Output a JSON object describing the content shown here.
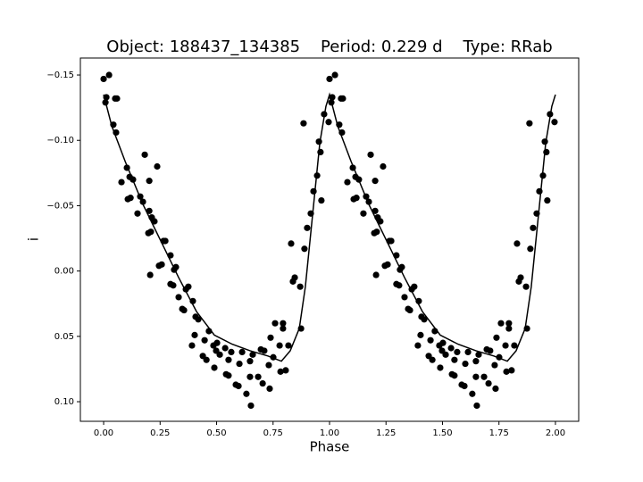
{
  "chart_data": {
    "type": "scatter",
    "title": "Object: 188437_134385    Period: 0.229 d    Type: RRab",
    "xlabel": "Phase",
    "ylabel": "i",
    "xlim": [
      -0.103,
      2.103
    ],
    "ylim": [
      0.115,
      -0.163
    ],
    "xticks": [
      {
        "value": 0,
        "label": "0.00"
      },
      0.25,
      {
        "value": 0.5,
        "label": "0.50"
      },
      0.75,
      {
        "value": 1,
        "label": "1.00"
      },
      1.25,
      {
        "value": 1.5,
        "label": "1.50"
      },
      1.75,
      {
        "value": 2,
        "label": "2.00"
      }
    ],
    "yticks": [
      {
        "value": -0.15,
        "label": "−0.15"
      },
      {
        "value": -0.1,
        "label": "−0.10"
      },
      {
        "value": -0.05,
        "label": "−0.05"
      },
      {
        "value": 0,
        "label": "0.00"
      },
      0.05,
      {
        "value": 0.1,
        "label": "0.10"
      }
    ],
    "grid": false,
    "series": [
      {
        "type": "scatter",
        "color": "#000000",
        "x": [
          0.0,
          0.008,
          0.012,
          0.024,
          0.043,
          0.051,
          0.059,
          0.055,
          0.079,
          0.103,
          0.107,
          0.115,
          0.119,
          0.13,
          0.15,
          0.162,
          0.174,
          0.182,
          0.198,
          0.202,
          0.202,
          0.209,
          0.213,
          0.225,
          0.237,
          0.245,
          0.257,
          0.265,
          0.273,
          0.206,
          0.296,
          0.296,
          0.308,
          0.312,
          0.32,
          0.332,
          0.348,
          0.356,
          0.364,
          0.375,
          0.395,
          0.407,
          0.419,
          0.391,
          0.403,
          0.439,
          0.447,
          0.455,
          0.466,
          0.486,
          0.49,
          0.498,
          0.502,
          0.514,
          0.538,
          0.542,
          0.553,
          0.553,
          0.565,
          0.585,
          0.597,
          0.601,
          0.613,
          0.632,
          0.648,
          0.652,
          0.648,
          0.66,
          0.684,
          0.696,
          0.704,
          0.711,
          0.731,
          0.735,
          0.739,
          0.751,
          0.759,
          0.779,
          0.783,
          0.794,
          0.794,
          0.806,
          0.818,
          0.83,
          0.838,
          0.846,
          0.87,
          0.874,
          0.889,
          0.885,
          0.901,
          0.917,
          0.929,
          0.945,
          0.953,
          0.96,
          0.964,
          0.976,
          0.996,
          1.0,
          1.008,
          1.012,
          1.024,
          1.043,
          1.051,
          1.059,
          1.055,
          1.079,
          1.103,
          1.107,
          1.115,
          1.119,
          1.13,
          1.15,
          1.162,
          1.174,
          1.182,
          1.198,
          1.202,
          1.202,
          1.209,
          1.213,
          1.225,
          1.237,
          1.245,
          1.257,
          1.265,
          1.273,
          1.206,
          1.296,
          1.296,
          1.308,
          1.312,
          1.32,
          1.332,
          1.348,
          1.356,
          1.364,
          1.375,
          1.395,
          1.407,
          1.419,
          1.391,
          1.403,
          1.439,
          1.447,
          1.455,
          1.466,
          1.486,
          1.49,
          1.498,
          1.502,
          1.514,
          1.538,
          1.542,
          1.553,
          1.553,
          1.565,
          1.585,
          1.597,
          1.601,
          1.613,
          1.632,
          1.648,
          1.652,
          1.648,
          1.66,
          1.684,
          1.696,
          1.704,
          1.711,
          1.731,
          1.735,
          1.739,
          1.751,
          1.759,
          1.779,
          1.783,
          1.794,
          1.794,
          1.806,
          1.818,
          1.83,
          1.838,
          1.846,
          1.87,
          1.874,
          1.889,
          1.885,
          1.901,
          1.917,
          1.929,
          1.945,
          1.953,
          1.96,
          1.964,
          1.976,
          1.996
        ],
        "values": [
          -0.147,
          -0.129,
          -0.133,
          -0.15,
          -0.112,
          -0.132,
          -0.132,
          -0.106,
          -0.068,
          -0.079,
          -0.055,
          -0.072,
          -0.056,
          -0.07,
          -0.044,
          -0.057,
          -0.053,
          -0.089,
          -0.029,
          -0.069,
          -0.046,
          -0.03,
          -0.041,
          -0.038,
          -0.08,
          -0.004,
          -0.005,
          -0.023,
          -0.023,
          0.003,
          -0.012,
          0.01,
          0.011,
          -0.001,
          -0.003,
          0.02,
          0.029,
          0.03,
          0.014,
          0.012,
          0.023,
          0.035,
          0.037,
          0.057,
          0.049,
          0.065,
          0.053,
          0.068,
          0.046,
          0.057,
          0.074,
          0.061,
          0.055,
          0.064,
          0.059,
          0.079,
          0.08,
          0.068,
          0.062,
          0.087,
          0.088,
          0.071,
          0.062,
          0.094,
          0.081,
          0.103,
          0.069,
          0.064,
          0.081,
          0.06,
          0.086,
          0.061,
          0.072,
          0.09,
          0.051,
          0.066,
          0.04,
          0.057,
          0.077,
          0.044,
          0.04,
          0.076,
          0.057,
          -0.021,
          0.008,
          0.005,
          0.012,
          0.044,
          -0.017,
          -0.113,
          -0.033,
          -0.044,
          -0.061,
          -0.073,
          -0.099,
          -0.091,
          -0.054,
          -0.12,
          -0.114,
          -0.147,
          -0.129,
          -0.133,
          -0.15,
          -0.112,
          -0.132,
          -0.132,
          -0.106,
          -0.068,
          -0.079,
          -0.055,
          -0.072,
          -0.056,
          -0.07,
          -0.044,
          -0.057,
          -0.053,
          -0.089,
          -0.029,
          -0.069,
          -0.046,
          -0.03,
          -0.041,
          -0.038,
          -0.08,
          -0.004,
          -0.005,
          -0.023,
          -0.023,
          0.003,
          -0.012,
          0.01,
          0.011,
          -0.001,
          -0.003,
          0.02,
          0.029,
          0.03,
          0.014,
          0.012,
          0.023,
          0.035,
          0.037,
          0.057,
          0.049,
          0.065,
          0.053,
          0.068,
          0.046,
          0.057,
          0.074,
          0.061,
          0.055,
          0.064,
          0.059,
          0.079,
          0.08,
          0.068,
          0.062,
          0.087,
          0.088,
          0.071,
          0.062,
          0.094,
          0.081,
          0.103,
          0.069,
          0.064,
          0.081,
          0.06,
          0.086,
          0.061,
          0.072,
          0.09,
          0.051,
          0.066,
          0.04,
          0.057,
          0.077,
          0.044,
          0.04,
          0.076,
          0.057,
          -0.021,
          0.008,
          0.005,
          0.012,
          0.044,
          -0.017,
          -0.113,
          -0.033,
          -0.044,
          -0.061,
          -0.073,
          -0.099,
          -0.091,
          -0.054,
          -0.12,
          -0.114
        ]
      },
      {
        "type": "line",
        "color": "#000000",
        "x": [
          0,
          0.036,
          0.095,
          0.174,
          0.253,
          0.332,
          0.411,
          0.49,
          0.569,
          0.648,
          0.727,
          0.787,
          0.826,
          0.866,
          0.893,
          0.925,
          0.957,
          0.984,
          1.0,
          1.036,
          1.095,
          1.174,
          1.253,
          1.332,
          1.411,
          1.49,
          1.569,
          1.648,
          1.727,
          1.787,
          1.826,
          1.866,
          1.893,
          1.925,
          1.957,
          1.984,
          2.0
        ],
        "values": [
          -0.135,
          -0.111,
          -0.084,
          -0.051,
          -0.023,
          0.005,
          0.031,
          0.049,
          0.056,
          0.061,
          0.065,
          0.069,
          0.061,
          0.044,
          0.012,
          -0.043,
          -0.098,
          -0.126,
          -0.135,
          -0.111,
          -0.084,
          -0.051,
          -0.023,
          0.005,
          0.031,
          0.049,
          0.056,
          0.061,
          0.065,
          0.069,
          0.061,
          0.044,
          0.012,
          -0.043,
          -0.098,
          -0.126,
          -0.135
        ]
      }
    ]
  }
}
